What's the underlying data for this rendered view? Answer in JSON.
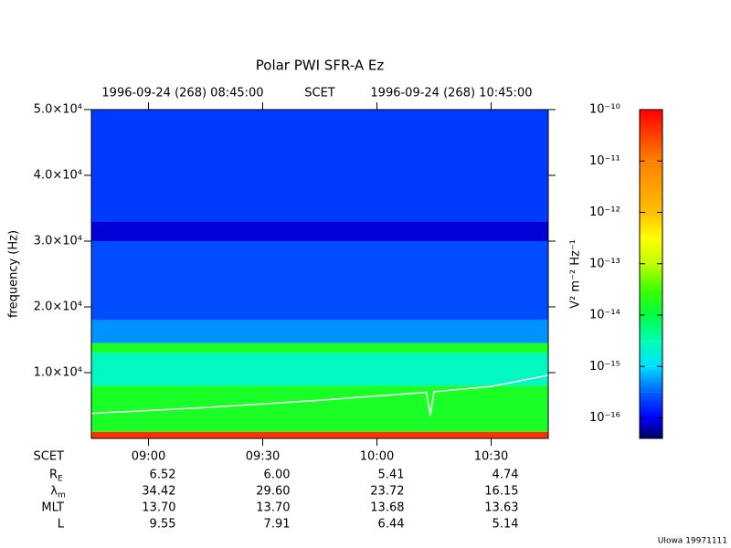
{
  "chart_data": {
    "type": "spectrogram",
    "title": "Polar PWI SFR-A Ez",
    "header": {
      "start": "1996-09-24 (268) 08:45:00",
      "axis_name": "SCET",
      "end": "1996-09-24 (268) 10:45:00"
    },
    "ylabel": "frequency (Hz)",
    "xlim": [
      0,
      120
    ],
    "xticks": [
      {
        "value": 15,
        "label": "09:00"
      },
      {
        "value": 45,
        "label": "09:30"
      },
      {
        "value": 75,
        "label": "10:00"
      },
      {
        "value": 105,
        "label": "10:30"
      }
    ],
    "ylim": [
      0,
      50000
    ],
    "yticks": [
      {
        "value": 10000,
        "label": "1.0×10⁴"
      },
      {
        "value": 20000,
        "label": "2.0×10⁴"
      },
      {
        "value": 30000,
        "label": "3.0×10⁴"
      },
      {
        "value": 40000,
        "label": "4.0×10⁴"
      },
      {
        "value": 50000,
        "label": "5.0×10⁴"
      }
    ],
    "heatmap": {
      "freq_edges": [
        0,
        1000,
        8000,
        13000,
        14500,
        18000,
        30000,
        33000,
        50000
      ],
      "log_power": [
        -10.4,
        -13.8,
        -14.6,
        -13.8,
        -15.3,
        -15.6,
        -16.1,
        -15.7
      ]
    },
    "colormap": {
      "levels": [
        -16.4,
        -16.0,
        -15.5,
        -15.0,
        -14.5,
        -14.0,
        -13.5,
        -13.0,
        -12.5,
        -12.0,
        -11.0,
        -10.0
      ],
      "colors": [
        "#000060",
        "#0000ff",
        "#0060ff",
        "#00e0ff",
        "#00ffb0",
        "#00ff40",
        "#40ff00",
        "#c0ff00",
        "#ffff00",
        "#ffc000",
        "#ff8000",
        "#ff0000"
      ]
    },
    "zlim": [
      -16.4,
      -10
    ],
    "zticks": [
      {
        "value": -10,
        "label": "10⁻¹⁰"
      },
      {
        "value": -11,
        "label": "10⁻¹¹"
      },
      {
        "value": -12,
        "label": "10⁻¹²"
      },
      {
        "value": -13,
        "label": "10⁻¹³"
      },
      {
        "value": -14,
        "label": "10⁻¹⁴"
      },
      {
        "value": -15,
        "label": "10⁻¹⁵"
      },
      {
        "value": -16,
        "label": "10⁻¹⁶"
      }
    ],
    "zlabel": "V² m⁻² Hz⁻¹",
    "series": [
      {
        "name": "trace",
        "color": "#ffffff",
        "x": [
          0,
          30,
          60,
          88,
          89,
          90,
          105,
          120
        ],
        "values": [
          3800,
          4700,
          5800,
          7000,
          3500,
          7100,
          7900,
          9600
        ]
      }
    ],
    "ephemeris": {
      "time_label": "SCET",
      "rows": [
        {
          "label": "R",
          "sub": "E",
          "values": [
            "6.52",
            "6.00",
            "5.41",
            "4.74"
          ]
        },
        {
          "label": "λ",
          "sub": "m",
          "values": [
            "34.42",
            "29.60",
            "23.72",
            "16.15"
          ]
        },
        {
          "label": "MLT",
          "values": [
            "13.70",
            "13.70",
            "13.68",
            "13.63"
          ]
        },
        {
          "label": "L",
          "values": [
            "9.55",
            "7.91",
            "6.44",
            "5.14"
          ]
        }
      ]
    },
    "footer": "UIowa 19971111"
  }
}
